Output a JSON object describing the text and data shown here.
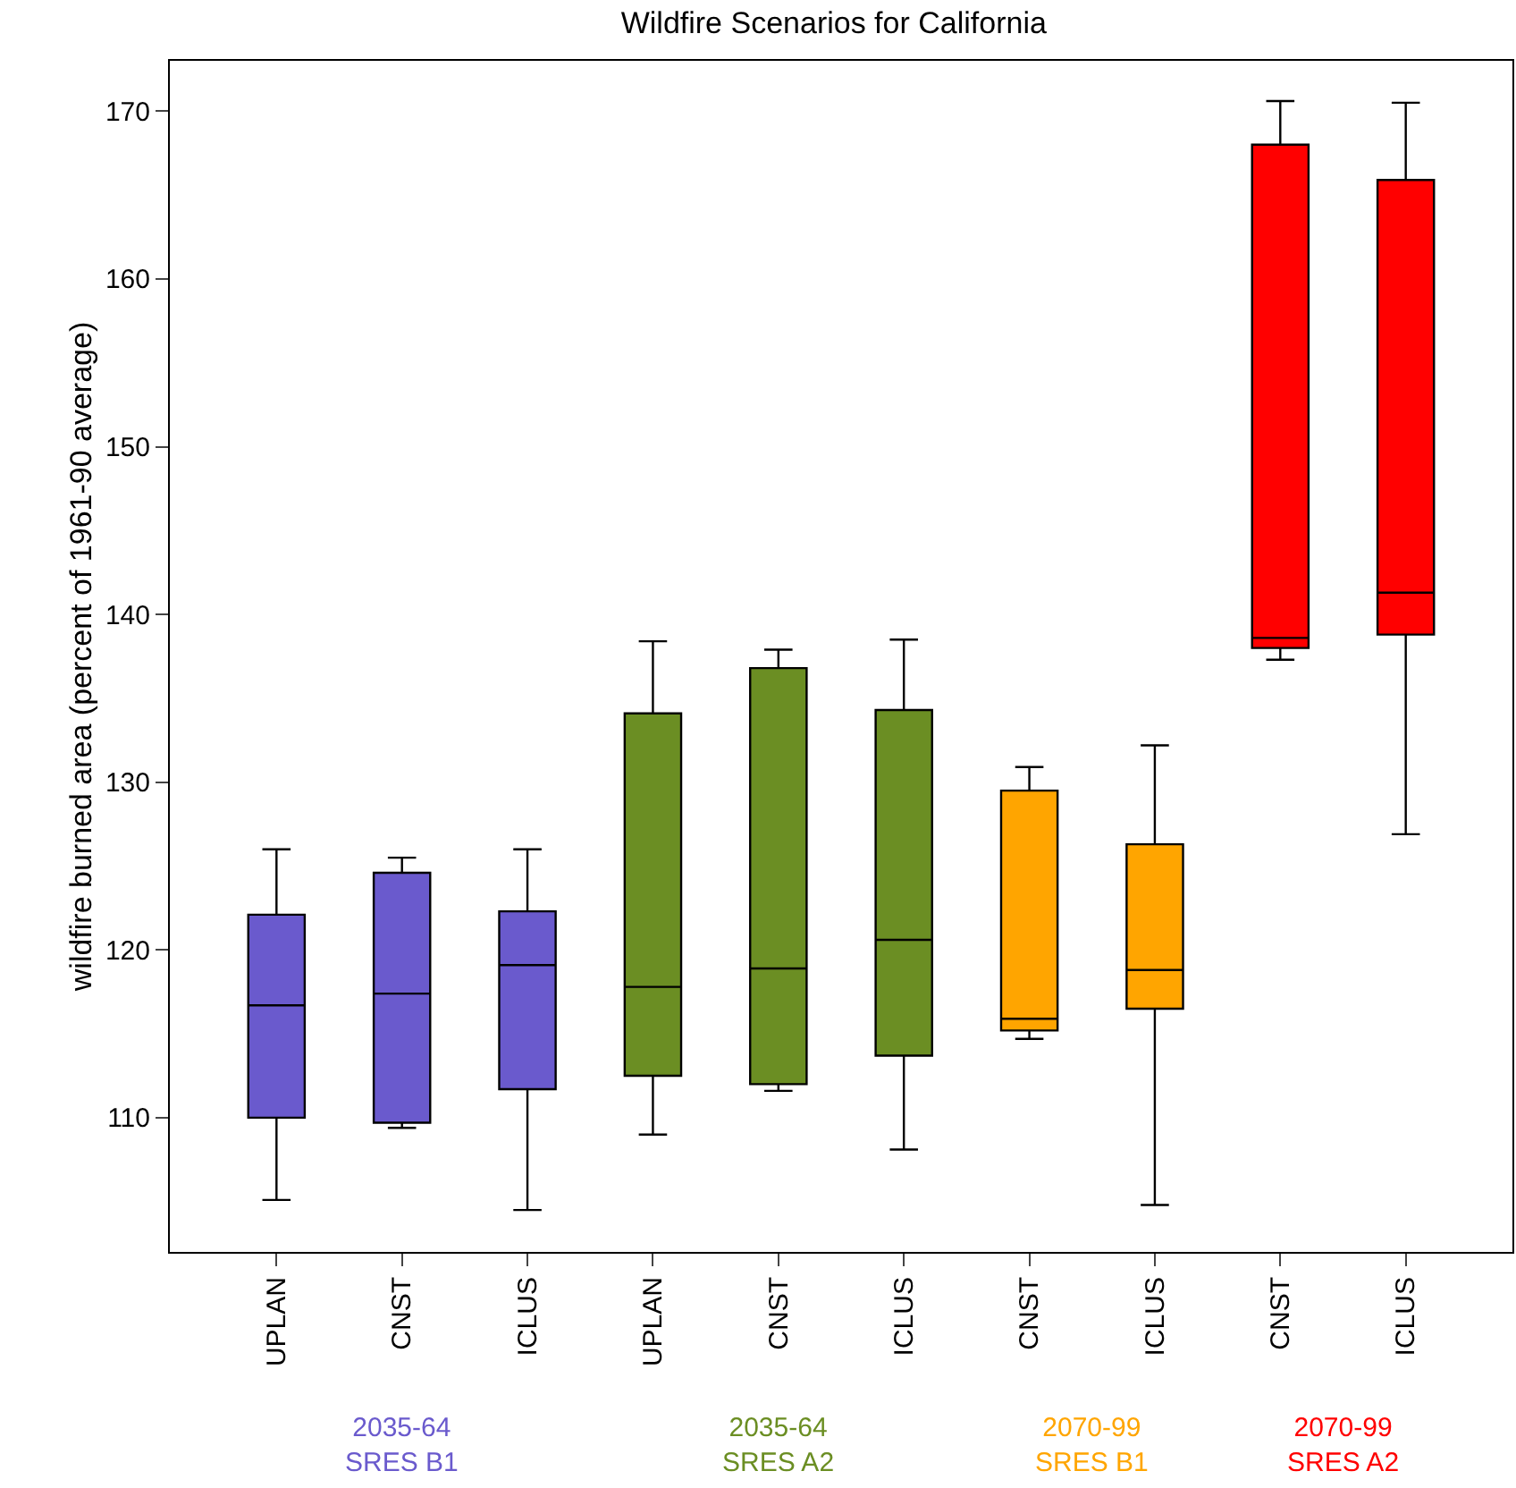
{
  "chart_data": {
    "type": "box",
    "title": "Wildfire Scenarios for California",
    "ylabel": "wildfire burned area (percent of 1961-90 average)",
    "categories": [
      "UPLAN",
      "CNST",
      "ICLUS",
      "UPLAN",
      "CNST",
      "ICLUS",
      "CNST",
      "ICLUS",
      "CNST",
      "ICLUS"
    ],
    "ylim": [
      102,
      173
    ],
    "yticks": [
      110,
      120,
      130,
      140,
      150,
      160,
      170
    ],
    "grid": false,
    "legend": false,
    "series": [
      {
        "name": "2035-64\nSRES B1",
        "color": "#6a5acd",
        "boxes": [
          {
            "low": 105.1,
            "q1": 110.0,
            "median": 116.7,
            "q3": 122.1,
            "high": 126.0
          },
          {
            "low": 109.4,
            "q1": 109.7,
            "median": 117.4,
            "q3": 124.6,
            "high": 125.5
          },
          {
            "low": 104.5,
            "q1": 111.7,
            "median": 119.1,
            "q3": 122.3,
            "high": 126.0
          },
          null,
          null,
          null,
          null,
          null,
          null,
          null
        ]
      },
      {
        "name": "2035-64\nSRES A2",
        "color": "#6b8e23",
        "boxes": [
          null,
          null,
          null,
          {
            "low": 109.0,
            "q1": 112.5,
            "median": 117.8,
            "q3": 134.1,
            "high": 138.4
          },
          {
            "low": 111.6,
            "q1": 112.0,
            "median": 118.9,
            "q3": 136.8,
            "high": 137.9
          },
          {
            "low": 108.1,
            "q1": 113.7,
            "median": 120.6,
            "q3": 134.3,
            "high": 138.5
          },
          null,
          null,
          null,
          null
        ]
      },
      {
        "name": "2070-99\nSRES B1",
        "color": "#ffa500",
        "boxes": [
          null,
          null,
          null,
          null,
          null,
          null,
          {
            "low": 114.7,
            "q1": 115.2,
            "median": 115.9,
            "q3": 129.5,
            "high": 130.9
          },
          {
            "low": 104.8,
            "q1": 116.5,
            "median": 118.8,
            "q3": 126.3,
            "high": 132.2
          },
          null,
          null
        ]
      },
      {
        "name": "2070-99\nSRES A2",
        "color": "#ff0000",
        "boxes": [
          null,
          null,
          null,
          null,
          null,
          null,
          null,
          null,
          {
            "low": 137.3,
            "q1": 138.0,
            "median": 138.6,
            "q3": 168.0,
            "high": 170.6
          },
          {
            "low": 126.9,
            "q1": 138.8,
            "median": 141.3,
            "q3": 165.9,
            "high": 170.5
          }
        ]
      }
    ]
  }
}
